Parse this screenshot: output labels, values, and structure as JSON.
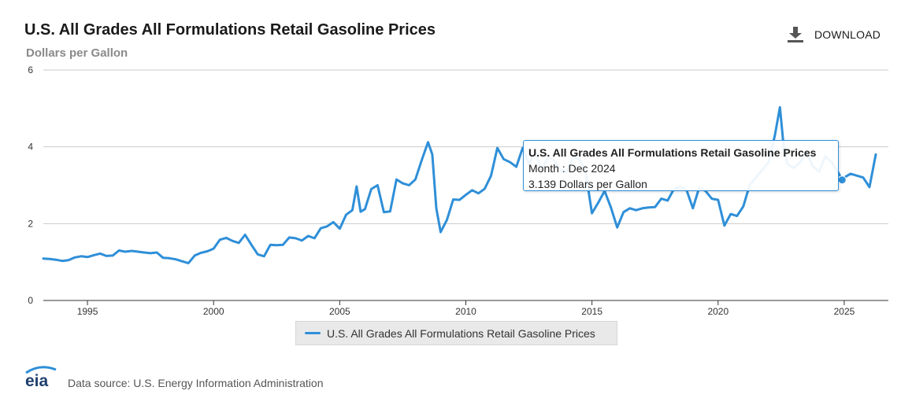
{
  "header": {
    "title": "U.S. All Grades All Formulations Retail Gasoline Prices",
    "units": "Dollars per Gallon",
    "download_label": "DOWNLOAD"
  },
  "tooltip": {
    "title": "U.S. All Grades All Formulations Retail Gasoline Prices",
    "month_line": "Month : Dec 2024",
    "value_line": "3.139 Dollars per Gallon",
    "x": 2024.917,
    "y": 3.139
  },
  "footer": {
    "logo_text": "eia",
    "source": "Data source: U.S. Energy Information Administration"
  },
  "colors": {
    "series": "#2f8fd8",
    "grid": "#cccccc",
    "axis": "#333333"
  },
  "chart_data": {
    "type": "line",
    "title": "U.S. All Grades All Formulations Retail Gasoline Prices",
    "ylabel": "Dollars per Gallon",
    "xlim": [
      1993.25,
      2026.75
    ],
    "ylim": [
      0,
      6
    ],
    "x_ticks": [
      1995,
      2000,
      2005,
      2010,
      2015,
      2020,
      2025
    ],
    "y_ticks": [
      0,
      2,
      4,
      6
    ],
    "grid": true,
    "legend_position": "bottom",
    "series": [
      {
        "name": "U.S. All Grades All Formulations Retail Gasoline Prices",
        "x": [
          1993.25,
          1993.5,
          1993.75,
          1994.0,
          1994.25,
          1994.5,
          1994.75,
          1995.0,
          1995.25,
          1995.5,
          1995.75,
          1996.0,
          1996.25,
          1996.5,
          1996.75,
          1997.0,
          1997.25,
          1997.5,
          1997.75,
          1998.0,
          1998.25,
          1998.5,
          1998.75,
          1999.0,
          1999.25,
          1999.5,
          1999.75,
          2000.0,
          2000.25,
          2000.5,
          2000.75,
          2001.0,
          2001.25,
          2001.5,
          2001.75,
          2002.0,
          2002.25,
          2002.5,
          2002.75,
          2003.0,
          2003.25,
          2003.5,
          2003.75,
          2004.0,
          2004.25,
          2004.5,
          2004.75,
          2005.0,
          2005.25,
          2005.5,
          2005.67,
          2005.83,
          2006.0,
          2006.25,
          2006.5,
          2006.75,
          2007.0,
          2007.25,
          2007.5,
          2007.75,
          2008.0,
          2008.25,
          2008.5,
          2008.67,
          2008.83,
          2009.0,
          2009.25,
          2009.5,
          2009.75,
          2010.0,
          2010.25,
          2010.5,
          2010.75,
          2011.0,
          2011.25,
          2011.5,
          2011.75,
          2012.0,
          2012.25,
          2012.5,
          2012.75,
          2013.0,
          2013.25,
          2013.5,
          2013.75,
          2014.0,
          2014.25,
          2014.5,
          2014.75,
          2015.0,
          2015.25,
          2015.5,
          2015.75,
          2016.0,
          2016.25,
          2016.5,
          2016.75,
          2017.0,
          2017.25,
          2017.5,
          2017.75,
          2018.0,
          2018.25,
          2018.5,
          2018.75,
          2019.0,
          2019.25,
          2019.5,
          2019.75,
          2020.0,
          2020.25,
          2020.5,
          2020.75,
          2021.0,
          2021.25,
          2021.5,
          2021.75,
          2022.0,
          2022.25,
          2022.45,
          2022.6,
          2022.75,
          2023.0,
          2023.25,
          2023.5,
          2023.75,
          2024.0,
          2024.25,
          2024.5,
          2024.75,
          2024.917,
          2025.0,
          2025.25,
          2025.5,
          2025.75,
          2026.0,
          2026.25
        ],
        "y": [
          1.09,
          1.08,
          1.06,
          1.03,
          1.05,
          1.12,
          1.15,
          1.13,
          1.18,
          1.22,
          1.16,
          1.17,
          1.3,
          1.27,
          1.29,
          1.27,
          1.25,
          1.23,
          1.25,
          1.11,
          1.1,
          1.07,
          1.02,
          0.97,
          1.17,
          1.24,
          1.28,
          1.35,
          1.58,
          1.63,
          1.55,
          1.5,
          1.71,
          1.45,
          1.2,
          1.15,
          1.45,
          1.44,
          1.45,
          1.64,
          1.62,
          1.56,
          1.68,
          1.62,
          1.88,
          1.93,
          2.04,
          1.87,
          2.23,
          2.35,
          2.97,
          2.31,
          2.38,
          2.9,
          3.0,
          2.3,
          2.32,
          3.15,
          3.05,
          3.0,
          3.15,
          3.65,
          4.12,
          3.8,
          2.4,
          1.78,
          2.1,
          2.63,
          2.62,
          2.75,
          2.87,
          2.79,
          2.91,
          3.25,
          3.97,
          3.68,
          3.6,
          3.48,
          3.97,
          3.55,
          3.85,
          3.4,
          3.72,
          3.65,
          3.38,
          3.35,
          3.72,
          3.68,
          3.35,
          2.27,
          2.55,
          2.85,
          2.42,
          1.9,
          2.3,
          2.4,
          2.35,
          2.4,
          2.42,
          2.43,
          2.65,
          2.6,
          2.9,
          2.96,
          2.87,
          2.4,
          2.94,
          2.85,
          2.65,
          2.62,
          1.95,
          2.25,
          2.2,
          2.45,
          3.0,
          3.2,
          3.4,
          3.6,
          4.3,
          5.03,
          4.0,
          3.55,
          3.45,
          3.6,
          3.85,
          3.5,
          3.35,
          3.75,
          3.6,
          3.35,
          3.139,
          3.2,
          3.3,
          3.25,
          3.2,
          2.95,
          3.8
        ]
      }
    ]
  }
}
